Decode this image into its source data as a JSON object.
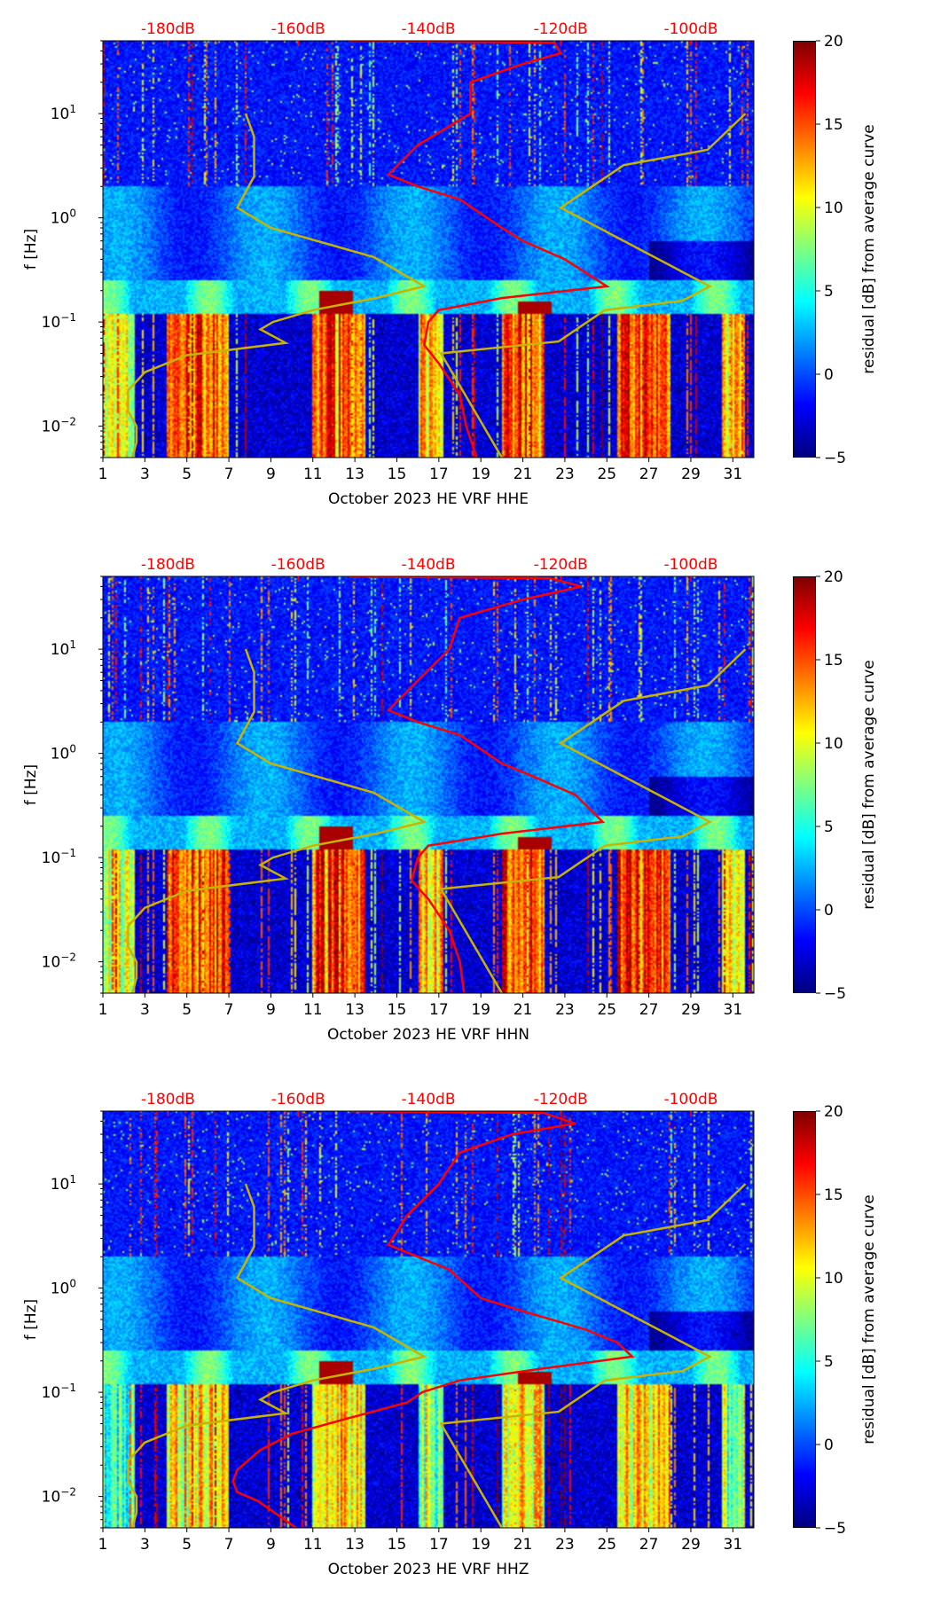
{
  "chart_data": [
    {
      "type": "heatmap",
      "title": "",
      "xlabel": "October 2023 HE VRF  HHE",
      "ylabel": "f [Hz]",
      "xlim": [
        1,
        32
      ],
      "ylim": [
        0.005,
        50
      ],
      "yscale": "log",
      "xticks": [
        "1",
        "3",
        "5",
        "7",
        "9",
        "11",
        "13",
        "15",
        "17",
        "19",
        "21",
        "23",
        "25",
        "27",
        "29",
        "31"
      ],
      "yticks": [
        {
          "value": 0.01,
          "label": "10",
          "exp": "−2"
        },
        {
          "value": 0.1,
          "label": "10",
          "exp": "−1"
        },
        {
          "value": 1,
          "label": "10",
          "exp": "0"
        },
        {
          "value": 10,
          "label": "10",
          "exp": "1"
        }
      ],
      "top_axis": {
        "color": "#ff0000",
        "ticks": [
          {
            "label": "-180dB",
            "day": 4.1
          },
          {
            "label": "-160dB",
            "day": 10.3
          },
          {
            "label": "-140dB",
            "day": 16.5
          },
          {
            "label": "-120dB",
            "day": 22.8
          },
          {
            "label": "-100dB",
            "day": 29.0
          }
        ]
      },
      "colorbar": {
        "label": "residual [dB] from average curve",
        "range": [
          -5,
          20
        ],
        "ticks": [
          "20",
          "15",
          "10",
          "5",
          "0",
          "−5"
        ]
      },
      "series": [
        {
          "name": "mean-psd-curve",
          "color": "#ff0000",
          "x_day": [
            12.7,
            22.5,
            22.8,
            21,
            18.5,
            18.5,
            16,
            14.6,
            16,
            18,
            20,
            21,
            23,
            25,
            20,
            17,
            16.5,
            16.3,
            17,
            18,
            18.3,
            18.8
          ],
          "f": [
            50,
            48,
            38,
            30,
            20,
            10,
            5,
            2.6,
            2,
            1.5,
            0.8,
            0.6,
            0.4,
            0.22,
            0.17,
            0.13,
            0.1,
            0.06,
            0.04,
            0.02,
            0.01,
            0.005
          ]
        },
        {
          "name": "reference-curve",
          "color": "#c8b400",
          "x_day": [
            7.8,
            8.2,
            8.2,
            7.4,
            9,
            13.9,
            16.3,
            14,
            11,
            9.1,
            8.5,
            9.7,
            5,
            3,
            2.2,
            2.2,
            2.6,
            2.6,
            2.4
          ],
          "f": [
            10,
            6,
            2.5,
            1.25,
            0.8,
            0.42,
            0.22,
            0.17,
            0.13,
            0.1,
            0.085,
            0.063,
            0.048,
            0.033,
            0.022,
            0.014,
            0.01,
            0.007,
            0.005
          ]
        },
        {
          "name": "reference-curve-right",
          "color": "#c8b400",
          "x_day": [
            31.6,
            29.8,
            25.8,
            22.8,
            29.9,
            28.6,
            24.9,
            22.7,
            17.1,
            20
          ],
          "f": [
            10,
            4.5,
            3.2,
            1.25,
            0.22,
            0.16,
            0.13,
            0.065,
            0.05,
            0.005
          ]
        }
      ]
    },
    {
      "type": "heatmap",
      "title": "",
      "xlabel": "October 2023 HE VRF  HHN",
      "ylabel": "f [Hz]",
      "xlim": [
        1,
        32
      ],
      "ylim": [
        0.005,
        50
      ],
      "yscale": "log",
      "xticks": [
        "1",
        "3",
        "5",
        "7",
        "9",
        "11",
        "13",
        "15",
        "17",
        "19",
        "21",
        "23",
        "25",
        "27",
        "29",
        "31"
      ],
      "yticks": [
        {
          "value": 0.01,
          "label": "10",
          "exp": "−2"
        },
        {
          "value": 0.1,
          "label": "10",
          "exp": "−1"
        },
        {
          "value": 1,
          "label": "10",
          "exp": "0"
        },
        {
          "value": 10,
          "label": "10",
          "exp": "1"
        }
      ],
      "top_axis": {
        "color": "#ff0000",
        "ticks": [
          {
            "label": "-180dB",
            "day": 4.1
          },
          {
            "label": "-160dB",
            "day": 10.3
          },
          {
            "label": "-140dB",
            "day": 16.5
          },
          {
            "label": "-120dB",
            "day": 22.8
          },
          {
            "label": "-100dB",
            "day": 29.0
          }
        ]
      },
      "colorbar": {
        "label": "residual [dB] from average curve",
        "range": [
          -5,
          20
        ],
        "ticks": [
          "20",
          "15",
          "10",
          "5",
          "0",
          "−5"
        ]
      },
      "series": [
        {
          "name": "mean-psd-curve",
          "color": "#ff0000",
          "x_day": [
            12.7,
            22.3,
            23.8,
            21,
            18,
            17.5,
            16,
            14.6,
            16,
            18,
            20,
            21.5,
            23.5,
            24.8,
            20,
            16.5,
            16,
            15.7,
            16.5,
            17.5,
            18,
            18.2
          ],
          "f": [
            50,
            48,
            40,
            30,
            20,
            10,
            5,
            2.6,
            2,
            1.5,
            0.8,
            0.6,
            0.4,
            0.22,
            0.17,
            0.13,
            0.1,
            0.06,
            0.04,
            0.02,
            0.01,
            0.005
          ]
        },
        {
          "name": "reference-curve",
          "color": "#c8b400",
          "x_day": [
            7.8,
            8.2,
            8.2,
            7.4,
            9,
            13.9,
            16.3,
            14,
            11,
            9.1,
            8.5,
            9.7,
            5,
            3,
            2.2,
            2.2,
            2.6,
            2.6,
            2.4
          ],
          "f": [
            10,
            6,
            2.5,
            1.25,
            0.8,
            0.42,
            0.22,
            0.17,
            0.13,
            0.1,
            0.085,
            0.063,
            0.048,
            0.033,
            0.022,
            0.014,
            0.01,
            0.007,
            0.005
          ]
        },
        {
          "name": "reference-curve-right",
          "color": "#c8b400",
          "x_day": [
            31.6,
            29.8,
            25.8,
            22.8,
            29.9,
            28.6,
            24.9,
            22.7,
            17.1,
            20
          ],
          "f": [
            10,
            4.5,
            3.2,
            1.25,
            0.22,
            0.16,
            0.13,
            0.065,
            0.05,
            0.005
          ]
        }
      ]
    },
    {
      "type": "heatmap",
      "title": "",
      "xlabel": "October 2023 HE VRF  HHZ",
      "ylabel": "f [Hz]",
      "xlim": [
        1,
        32
      ],
      "ylim": [
        0.005,
        50
      ],
      "yscale": "log",
      "xticks": [
        "1",
        "3",
        "5",
        "7",
        "9",
        "11",
        "13",
        "15",
        "17",
        "19",
        "21",
        "23",
        "25",
        "27",
        "29",
        "31"
      ],
      "yticks": [
        {
          "value": 0.01,
          "label": "10",
          "exp": "−2"
        },
        {
          "value": 0.1,
          "label": "10",
          "exp": "−1"
        },
        {
          "value": 1,
          "label": "10",
          "exp": "0"
        },
        {
          "value": 10,
          "label": "10",
          "exp": "1"
        }
      ],
      "top_axis": {
        "color": "#ff0000",
        "ticks": [
          {
            "label": "-180dB",
            "day": 4.1
          },
          {
            "label": "-160dB",
            "day": 10.3
          },
          {
            "label": "-140dB",
            "day": 16.5
          },
          {
            "label": "-120dB",
            "day": 22.8
          },
          {
            "label": "-100dB",
            "day": 29.0
          }
        ]
      },
      "colorbar": {
        "label": "residual [dB] from average curve",
        "range": [
          -5,
          20
        ],
        "ticks": [
          "20",
          "15",
          "10",
          "5",
          "0",
          "−5"
        ]
      },
      "series": [
        {
          "name": "mean-psd-curve",
          "color": "#ff0000",
          "x_day": [
            12.7,
            22,
            23.5,
            20.5,
            18,
            17,
            15.5,
            14.6,
            16,
            17.5,
            19,
            21,
            24,
            25.5,
            26.2,
            22,
            18,
            16.2,
            15.5,
            12.5,
            10,
            8.5,
            7.4,
            7.2,
            7.4,
            8.4,
            10.2
          ],
          "f": [
            50,
            48,
            38,
            30,
            20,
            10,
            5,
            2.6,
            2,
            1.5,
            0.8,
            0.6,
            0.4,
            0.3,
            0.22,
            0.17,
            0.13,
            0.1,
            0.08,
            0.055,
            0.04,
            0.028,
            0.018,
            0.014,
            0.011,
            0.009,
            0.005
          ]
        },
        {
          "name": "reference-curve",
          "color": "#c8b400",
          "x_day": [
            7.8,
            8.2,
            8.2,
            7.4,
            9,
            13.9,
            16.3,
            14,
            11,
            9.1,
            8.5,
            9.7,
            5,
            3,
            2.2,
            2.2,
            2.6,
            2.6,
            2.4
          ],
          "f": [
            10,
            6,
            2.5,
            1.25,
            0.8,
            0.42,
            0.22,
            0.17,
            0.13,
            0.1,
            0.085,
            0.063,
            0.048,
            0.033,
            0.022,
            0.014,
            0.01,
            0.007,
            0.005
          ]
        },
        {
          "name": "reference-curve-right",
          "color": "#c8b400",
          "x_day": [
            31.6,
            29.8,
            25.8,
            22.8,
            29.9,
            28.6,
            24.9,
            22.7,
            17.1,
            20
          ],
          "f": [
            10,
            4.5,
            3.2,
            1.25,
            0.22,
            0.16,
            0.13,
            0.065,
            0.05,
            0.005
          ]
        }
      ]
    }
  ]
}
